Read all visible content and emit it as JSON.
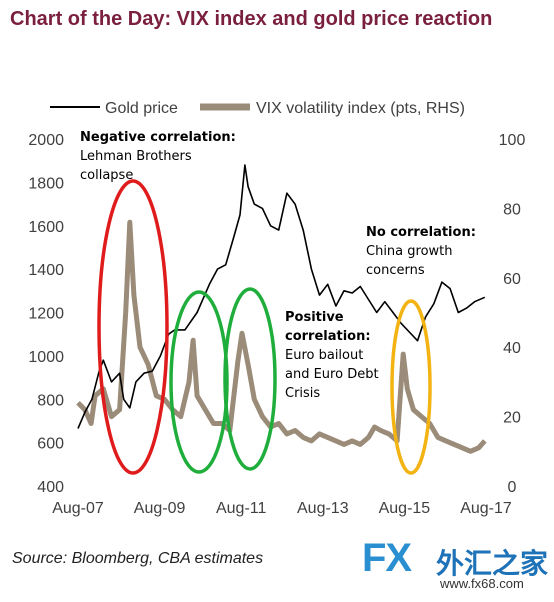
{
  "title": "Chart of the Day: VIX index and gold price reaction",
  "source": "Source: Bloomberg, CBA estimates",
  "watermark": {
    "brand": "FX",
    "name": "外汇之家",
    "url": "www.fx68.com"
  },
  "colors": {
    "title": "#7a1f3d",
    "gold": "#000000",
    "vix": "#9b8b79",
    "red": "#e01b1b",
    "green": "#1fae3b",
    "yellow": "#f2b313"
  },
  "chart_data": {
    "type": "line",
    "title": "",
    "x_tick_labels": [
      "Aug-07",
      "Aug-09",
      "Aug-11",
      "Aug-13",
      "Aug-15",
      "Aug-17"
    ],
    "y_left": {
      "ticks": [
        400,
        600,
        800,
        1000,
        1200,
        1400,
        1600,
        1800,
        2000
      ],
      "range": [
        400,
        2000
      ]
    },
    "y_right": {
      "ticks": [
        0,
        20,
        40,
        60,
        80,
        100
      ],
      "range": [
        0,
        100
      ]
    },
    "legend": [
      "Gold price",
      "VIX volatility index (pts, RHS)"
    ],
    "series": [
      {
        "name": "Gold price",
        "axis": "left",
        "x": [
          2007.58,
          2007.75,
          2007.92,
          2008.1,
          2008.2,
          2008.4,
          2008.6,
          2008.7,
          2008.85,
          2009.0,
          2009.2,
          2009.4,
          2009.6,
          2009.8,
          2009.95,
          2010.2,
          2010.5,
          2010.8,
          2011.0,
          2011.2,
          2011.4,
          2011.55,
          2011.67,
          2011.75,
          2011.9,
          2012.1,
          2012.3,
          2012.5,
          2012.7,
          2012.9,
          2013.1,
          2013.3,
          2013.5,
          2013.7,
          2013.9,
          2014.1,
          2014.3,
          2014.5,
          2014.7,
          2014.9,
          2015.1,
          2015.3,
          2015.5,
          2015.7,
          2015.9,
          2016.1,
          2016.3,
          2016.5,
          2016.7,
          2016.9,
          2017.1,
          2017.3,
          2017.55
        ],
        "values": [
          665,
          740,
          800,
          930,
          980,
          880,
          920,
          800,
          760,
          880,
          920,
          930,
          1000,
          1100,
          1120,
          1120,
          1200,
          1330,
          1400,
          1420,
          1550,
          1650,
          1880,
          1780,
          1700,
          1680,
          1600,
          1580,
          1750,
          1700,
          1580,
          1400,
          1280,
          1330,
          1230,
          1300,
          1290,
          1320,
          1260,
          1200,
          1250,
          1200,
          1150,
          1110,
          1070,
          1180,
          1240,
          1340,
          1310,
          1200,
          1220,
          1250,
          1270
        ]
      },
      {
        "name": "VIX volatility index (pts, RHS)",
        "axis": "right",
        "x": [
          2007.58,
          2007.75,
          2007.9,
          2008.0,
          2008.2,
          2008.4,
          2008.6,
          2008.75,
          2008.85,
          2008.95,
          2009.1,
          2009.3,
          2009.5,
          2009.7,
          2009.9,
          2010.1,
          2010.3,
          2010.4,
          2010.5,
          2010.7,
          2010.9,
          2011.1,
          2011.3,
          2011.5,
          2011.6,
          2011.75,
          2011.9,
          2012.1,
          2012.3,
          2012.5,
          2012.7,
          2012.9,
          2013.1,
          2013.3,
          2013.5,
          2013.7,
          2013.9,
          2014.1,
          2014.3,
          2014.5,
          2014.7,
          2014.85,
          2015.0,
          2015.2,
          2015.4,
          2015.55,
          2015.65,
          2015.8,
          2016.0,
          2016.2,
          2016.4,
          2016.6,
          2016.8,
          2017.0,
          2017.2,
          2017.4,
          2017.55
        ],
        "values": [
          24,
          22,
          18,
          26,
          28,
          20,
          22,
          50,
          76,
          55,
          40,
          35,
          26,
          25,
          22,
          20,
          30,
          42,
          26,
          22,
          18,
          18,
          16,
          36,
          44,
          35,
          25,
          20,
          17,
          18,
          15,
          16,
          14,
          13,
          15,
          14,
          13,
          12,
          13,
          12,
          14,
          17,
          16,
          15,
          13,
          38,
          28,
          22,
          20,
          18,
          14,
          13,
          12,
          11,
          10,
          11,
          13
        ]
      }
    ],
    "annotations": [
      {
        "lines": [
          "Negative correlation:",
          "Lehman Brothers",
          "collapse"
        ]
      },
      {
        "lines": [
          "No correlation:",
          "China growth",
          "concerns"
        ]
      },
      {
        "lines": [
          "Positive",
          "correlation:",
          "Euro bailout",
          "and Euro Debt",
          "Crisis"
        ]
      }
    ]
  }
}
